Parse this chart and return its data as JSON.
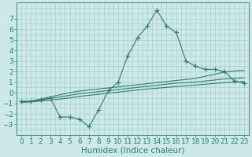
{
  "x_values": [
    0,
    1,
    2,
    3,
    4,
    5,
    6,
    7,
    8,
    9,
    10,
    11,
    12,
    13,
    14,
    15,
    16,
    17,
    18,
    19,
    20,
    21,
    22,
    23
  ],
  "series_main": [
    -0.8,
    -0.8,
    -0.7,
    -0.5,
    -2.3,
    -2.3,
    -2.5,
    -3.2,
    -1.6,
    0.2,
    1.0,
    3.5,
    5.2,
    6.3,
    7.8,
    6.3,
    5.7,
    3.0,
    2.5,
    2.2,
    2.2,
    2.0,
    1.1,
    0.9
  ],
  "series_line1": [
    -0.9,
    -0.8,
    -0.6,
    -0.4,
    -0.2,
    0.0,
    0.15,
    0.25,
    0.35,
    0.45,
    0.55,
    0.65,
    0.75,
    0.85,
    0.95,
    1.05,
    1.15,
    1.25,
    1.35,
    1.55,
    1.75,
    1.95,
    2.05,
    2.1
  ],
  "series_line2": [
    -0.9,
    -0.85,
    -0.7,
    -0.55,
    -0.4,
    -0.25,
    -0.1,
    0.0,
    0.1,
    0.2,
    0.3,
    0.4,
    0.5,
    0.6,
    0.7,
    0.8,
    0.9,
    0.95,
    1.0,
    1.1,
    1.2,
    1.3,
    1.35,
    1.4
  ],
  "series_line3": [
    -0.9,
    -0.87,
    -0.8,
    -0.7,
    -0.6,
    -0.5,
    -0.35,
    -0.25,
    -0.15,
    -0.05,
    0.05,
    0.15,
    0.25,
    0.35,
    0.42,
    0.5,
    0.58,
    0.65,
    0.72,
    0.8,
    0.88,
    0.95,
    1.0,
    1.05
  ],
  "line_color": "#2e7d6e",
  "bg_color": "#cde8e8",
  "grid_color": "#aacece",
  "xlabel": "Humidex (Indice chaleur)",
  "ylim": [
    -4,
    8.5
  ],
  "xlim": [
    -0.5,
    23.5
  ],
  "yticks": [
    -3,
    -2,
    -1,
    0,
    1,
    2,
    3,
    4,
    5,
    6,
    7
  ],
  "xticks": [
    0,
    1,
    2,
    3,
    4,
    5,
    6,
    7,
    8,
    9,
    10,
    11,
    12,
    13,
    14,
    15,
    16,
    17,
    18,
    19,
    20,
    21,
    22,
    23
  ],
  "xlabel_fontsize": 7.5,
  "tick_fontsize": 6.5,
  "marker": "+",
  "marker_size": 4,
  "line_width": 0.8
}
